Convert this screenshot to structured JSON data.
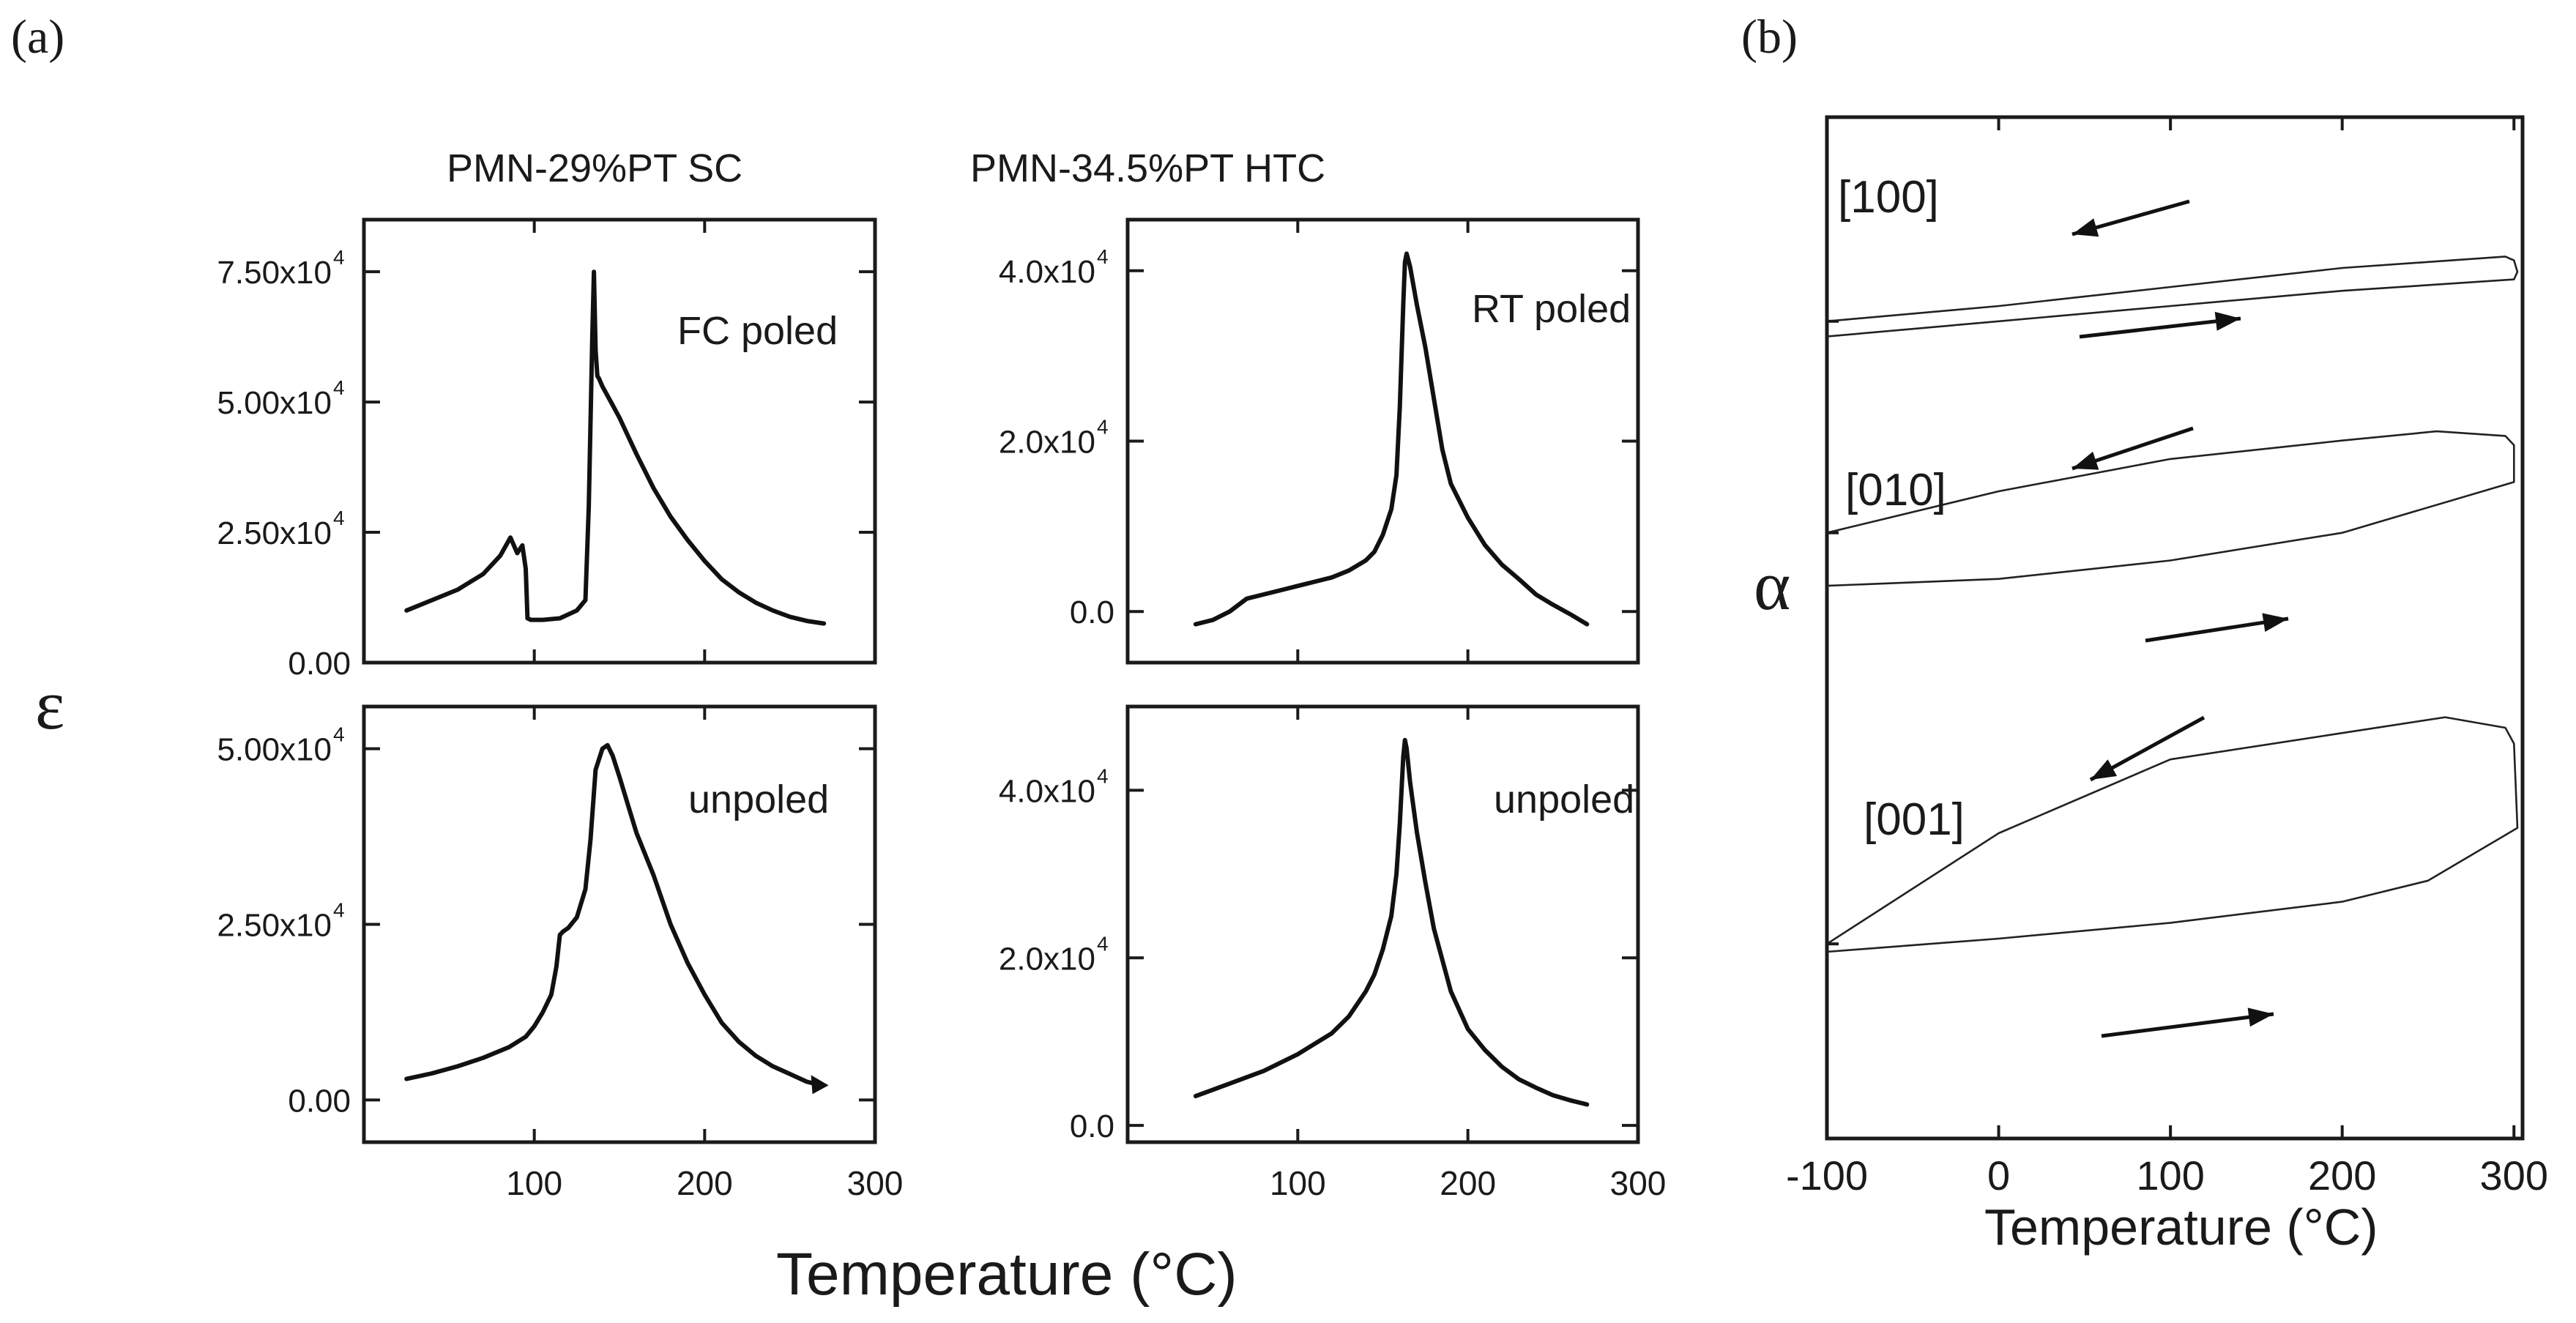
{
  "figure": {
    "epsilon_label": "ε",
    "alpha_label": "α",
    "xlabel_a": "Temperature (°C)"
  },
  "chart_data": [
    {
      "id": "a1",
      "type": "line",
      "panel_label": "(a)",
      "column_title": "PMN-29%PT SC",
      "annotation": "FC poled",
      "xlim": [
        0,
        300
      ],
      "ylim": [
        0,
        85000
      ],
      "x_ticks": [],
      "y_ticks": [
        0,
        25000,
        50000,
        75000
      ],
      "y_tick_labels": [
        "0.00",
        "2.50x10",
        "5.00x10",
        "7.50x10"
      ],
      "series": [
        {
          "name": "FC poled",
          "x": [
            25,
            40,
            55,
            70,
            80,
            86,
            90,
            93,
            95,
            96,
            98,
            105,
            115,
            125,
            130,
            132,
            134,
            135,
            136,
            137,
            138,
            140,
            145,
            150,
            155,
            160,
            170,
            180,
            190,
            200,
            210,
            220,
            230,
            240,
            250,
            260,
            270
          ],
          "y": [
            10000,
            12000,
            14000,
            17000,
            20500,
            24000,
            21000,
            22500,
            18000,
            8500,
            8200,
            8200,
            8500,
            10000,
            12000,
            30000,
            62000,
            75000,
            60000,
            55000,
            54500,
            53000,
            50000,
            47000,
            43500,
            40000,
            33500,
            28000,
            23500,
            19500,
            16000,
            13500,
            11500,
            10000,
            8800,
            8000,
            7500
          ]
        }
      ]
    },
    {
      "id": "a2",
      "type": "line",
      "column_title": "PMN-34.5%PT HTC",
      "annotation": "RT poled",
      "xlim": [
        0,
        300
      ],
      "ylim": [
        -6000,
        46000
      ],
      "x_ticks": [],
      "y_ticks": [
        0,
        20000,
        40000
      ],
      "y_tick_labels": [
        "0.0",
        "2.0x10",
        "4.0x10"
      ],
      "series": [
        {
          "name": "RT poled",
          "x": [
            40,
            50,
            60,
            70,
            80,
            90,
            100,
            110,
            120,
            130,
            140,
            145,
            150,
            155,
            158,
            160,
            162,
            163,
            164,
            166,
            170,
            175,
            180,
            185,
            190,
            200,
            210,
            220,
            230,
            240,
            250,
            260,
            270
          ],
          "y": [
            -1500,
            -1000,
            0,
            1500,
            2000,
            2500,
            3000,
            3500,
            4000,
            4800,
            6000,
            7000,
            9000,
            12000,
            16000,
            24000,
            36000,
            41000,
            42000,
            40500,
            36000,
            31000,
            25000,
            19000,
            15000,
            11000,
            7800,
            5500,
            3800,
            2000,
            800,
            -300,
            -1500
          ]
        }
      ]
    },
    {
      "id": "a3",
      "type": "line",
      "annotation": "unpoled",
      "xlim": [
        0,
        300
      ],
      "ylim": [
        -6000,
        56000
      ],
      "x_ticks": [
        100,
        200,
        300
      ],
      "x_tick_labels": [
        "100",
        "200",
        "300"
      ],
      "y_ticks": [
        0,
        25000,
        50000
      ],
      "y_tick_labels": [
        "0.00",
        "2.50x10",
        "5.00x10"
      ],
      "series": [
        {
          "name": "unpoled",
          "x": [
            25,
            40,
            55,
            70,
            85,
            95,
            100,
            105,
            110,
            113,
            115,
            117,
            120,
            125,
            130,
            133,
            136,
            140,
            143,
            146,
            150,
            155,
            160,
            170,
            180,
            190,
            200,
            210,
            220,
            230,
            240,
            250,
            260,
            265
          ],
          "y": [
            3000,
            3800,
            4800,
            6000,
            7500,
            9000,
            10500,
            12500,
            15000,
            19000,
            23500,
            24000,
            24500,
            26000,
            30000,
            37000,
            47000,
            50000,
            50500,
            49000,
            46000,
            42000,
            38000,
            32000,
            25000,
            19500,
            15000,
            11000,
            8300,
            6300,
            4800,
            3700,
            2600,
            2300
          ]
        }
      ]
    },
    {
      "id": "a4",
      "type": "line",
      "annotation": "unpoled",
      "xlim": [
        0,
        300
      ],
      "ylim": [
        -2000,
        50000
      ],
      "x_ticks": [
        100,
        200,
        300
      ],
      "x_tick_labels": [
        "100",
        "200",
        "300"
      ],
      "y_ticks": [
        0,
        20000,
        40000
      ],
      "y_tick_labels": [
        "0.0",
        "2.0x10",
        "4.0x10"
      ],
      "series": [
        {
          "name": "unpoled",
          "x": [
            40,
            60,
            80,
            100,
            120,
            130,
            140,
            145,
            150,
            155,
            158,
            160,
            162,
            163,
            164,
            166,
            170,
            175,
            180,
            190,
            200,
            210,
            220,
            230,
            240,
            250,
            260,
            270
          ],
          "y": [
            3500,
            5000,
            6500,
            8500,
            11000,
            13000,
            16000,
            18000,
            21000,
            25000,
            30000,
            36000,
            44000,
            46000,
            45000,
            41000,
            35000,
            29000,
            23500,
            16000,
            11500,
            9000,
            7000,
            5500,
            4500,
            3600,
            3000,
            2500
          ]
        }
      ]
    },
    {
      "id": "b",
      "type": "line",
      "panel_label": "(b)",
      "xlabel": "Temperature (°C)",
      "xlim": [
        -100,
        305
      ],
      "x_ticks": [
        -100,
        0,
        100,
        200,
        300
      ],
      "x_tick_labels": [
        "-100",
        "0",
        "100",
        "200",
        "300"
      ],
      "series": [
        {
          "name": "[100]",
          "x": [
            -100,
            0,
            100,
            200,
            295,
            300,
            302,
            300,
            200,
            100,
            0,
            -100
          ],
          "y_offset": [
            0.06,
            0.1,
            0.15,
            0.2,
            0.23,
            0.22,
            0.19,
            0.17,
            0.14,
            0.1,
            0.06,
            0.02
          ]
        },
        {
          "name": "[010]",
          "x": [
            -100,
            0,
            100,
            200,
            255,
            295,
            300,
            300,
            200,
            100,
            0,
            -100
          ],
          "y_offset": [
            0.21,
            0.3,
            0.37,
            0.41,
            0.43,
            0.42,
            0.4,
            0.32,
            0.21,
            0.15,
            0.11,
            0.095
          ]
        },
        {
          "name": "[001]",
          "x": [
            -100,
            0,
            100,
            200,
            260,
            295,
            300,
            302,
            250,
            200,
            100,
            0,
            -100
          ],
          "y_offset": [
            0.14,
            0.35,
            0.49,
            0.54,
            0.57,
            0.55,
            0.52,
            0.36,
            0.26,
            0.22,
            0.18,
            0.15,
            0.125
          ]
        }
      ]
    }
  ]
}
